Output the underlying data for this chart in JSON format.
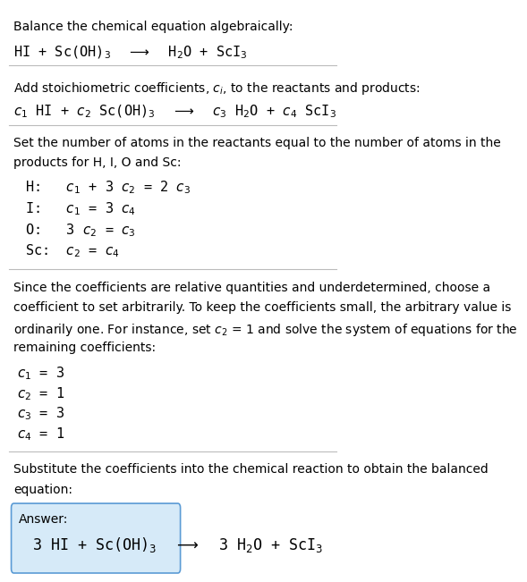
{
  "title": "Balance the chemical equation algebraically:",
  "equation1": "HI + Sc(OH)$_3$  $\\longrightarrow$  H$_2$O + ScI$_3$",
  "section2_header": "Add stoichiometric coefficients, $c_i$, to the reactants and products:",
  "equation2": "$c_1$ HI + $c_2$ Sc(OH)$_3$  $\\longrightarrow$  $c_3$ H$_2$O + $c_4$ ScI$_3$",
  "section3_header_line1": "Set the number of atoms in the reactants equal to the number of atoms in the",
  "section3_header_line2": "products for H, I, O and Sc:",
  "equations3": [
    "H:   $c_1$ + 3 $c_2$ = 2 $c_3$",
    "I:   $c_1$ = 3 $c_4$",
    "O:   3 $c_2$ = $c_3$",
    "Sc:  $c_2$ = $c_4$"
  ],
  "section4_header_lines": [
    "Since the coefficients are relative quantities and underdetermined, choose a",
    "coefficient to set arbitrarily. To keep the coefficients small, the arbitrary value is",
    "ordinarily one. For instance, set $c_2$ = 1 and solve the system of equations for the",
    "remaining coefficients:"
  ],
  "coefficients": [
    "$c_1$ = 3",
    "$c_2$ = 1",
    "$c_3$ = 3",
    "$c_4$ = 1"
  ],
  "section5_header_line1": "Substitute the coefficients into the chemical reaction to obtain the balanced",
  "section5_header_line2": "equation:",
  "answer_label": "Answer:",
  "answer_equation": "3 HI + Sc(OH)$_3$  $\\longrightarrow$  3 H$_2$O + ScI$_3$",
  "bg_color": "#ffffff",
  "text_color": "#000000",
  "box_bg_color": "#d6eaf8",
  "box_border_color": "#5b9bd5",
  "line_color": "#bbbbbb",
  "font_size": 10,
  "eq_font_size": 11
}
